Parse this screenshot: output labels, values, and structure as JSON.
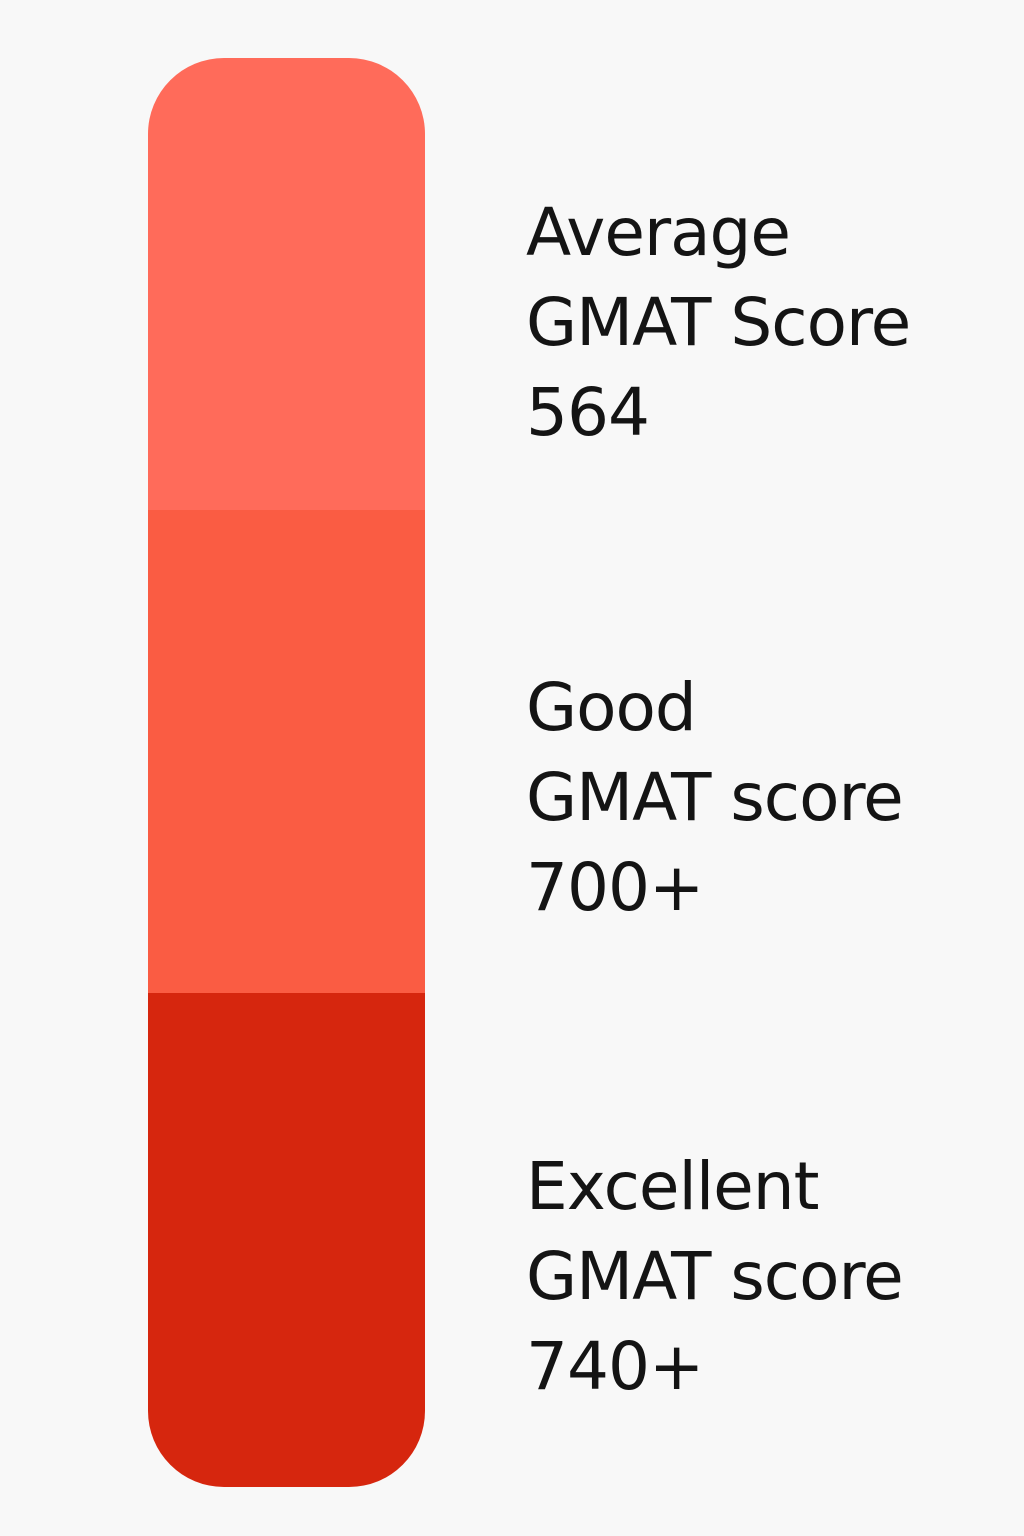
{
  "tiers": [
    {
      "name": "Average",
      "subtitle": "GMAT Score",
      "value": "564",
      "color": "#ff6b5a"
    },
    {
      "name": "Good",
      "subtitle": "GMAT score",
      "value": "700+",
      "color": "#fa5c43"
    },
    {
      "name": "Excellent",
      "subtitle": "GMAT score",
      "value": "740+",
      "color": "#d6260e"
    }
  ]
}
